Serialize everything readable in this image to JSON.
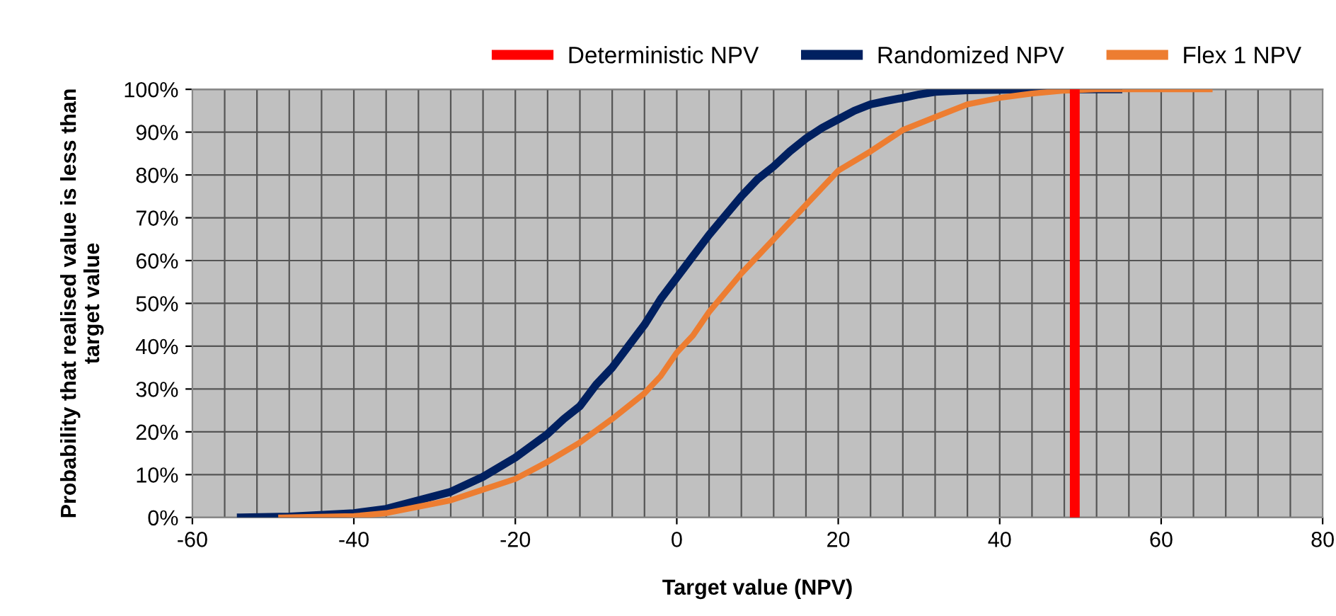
{
  "chart_data": {
    "type": "line",
    "xlabel": "Target value (NPV)",
    "ylabel": "Probability that realised value is less than\ntarget value",
    "xlim": [
      -60,
      80
    ],
    "xticks": [
      -60,
      -40,
      -20,
      0,
      20,
      40,
      60,
      80
    ],
    "ylim": [
      0,
      100
    ],
    "yticks": [
      {
        "value": 0,
        "label": "0%"
      },
      {
        "value": 10,
        "label": "10%"
      },
      {
        "value": 20,
        "label": "20%"
      },
      {
        "value": 30,
        "label": "30%"
      },
      {
        "value": 40,
        "label": "40%"
      },
      {
        "value": 50,
        "label": "50%"
      },
      {
        "value": 60,
        "label": "60%"
      },
      {
        "value": 70,
        "label": "70%"
      },
      {
        "value": 80,
        "label": "80%"
      },
      {
        "value": 90,
        "label": "90%"
      },
      {
        "value": 100,
        "label": "100%"
      }
    ],
    "grid": true,
    "legend": "top right",
    "marker": "none",
    "line_style": "solid",
    "series": [
      {
        "name": "Deterministic NPV",
        "color": "#ff0000",
        "x": [
          49.3,
          49.3
        ],
        "values": [
          0,
          100
        ]
      },
      {
        "name": "Randomized NPV",
        "color": "#002060",
        "x": [
          -54,
          -48,
          -40,
          -36,
          -32,
          -28,
          -24,
          -20,
          -16,
          -14,
          -12,
          -10,
          -8,
          -6,
          -4,
          -2,
          0,
          2,
          4,
          6,
          8,
          10,
          12,
          14,
          16,
          18,
          20,
          22,
          24,
          26,
          28,
          30,
          32,
          36,
          44,
          54.7
        ],
        "values": [
          0,
          0.2,
          1,
          2,
          4,
          6,
          9.5,
          14,
          19.5,
          23,
          26,
          31,
          35,
          40,
          45,
          51,
          56,
          61,
          66,
          70.5,
          75,
          79,
          82,
          85.5,
          88.5,
          91,
          93,
          95,
          96.5,
          97.3,
          98,
          98.8,
          99.4,
          99.8,
          100,
          100
        ]
      },
      {
        "name": "Flex 1 NPV",
        "color": "#ed7d31",
        "x": [
          -49,
          -40,
          -36,
          -32,
          -28,
          -24,
          -20,
          -16,
          -12,
          -8,
          -4,
          -2,
          0,
          2,
          4,
          6,
          8,
          12,
          16,
          20,
          24,
          28,
          32,
          36,
          40,
          44,
          48,
          52,
          66
        ],
        "values": [
          0,
          0.3,
          1,
          2.5,
          4,
          6.5,
          9,
          13,
          17.5,
          23,
          29,
          33,
          38.5,
          42.5,
          48,
          52.5,
          57,
          65,
          73,
          81,
          85.5,
          90.5,
          93.5,
          96.5,
          98,
          99,
          99.7,
          100,
          100
        ]
      }
    ]
  }
}
